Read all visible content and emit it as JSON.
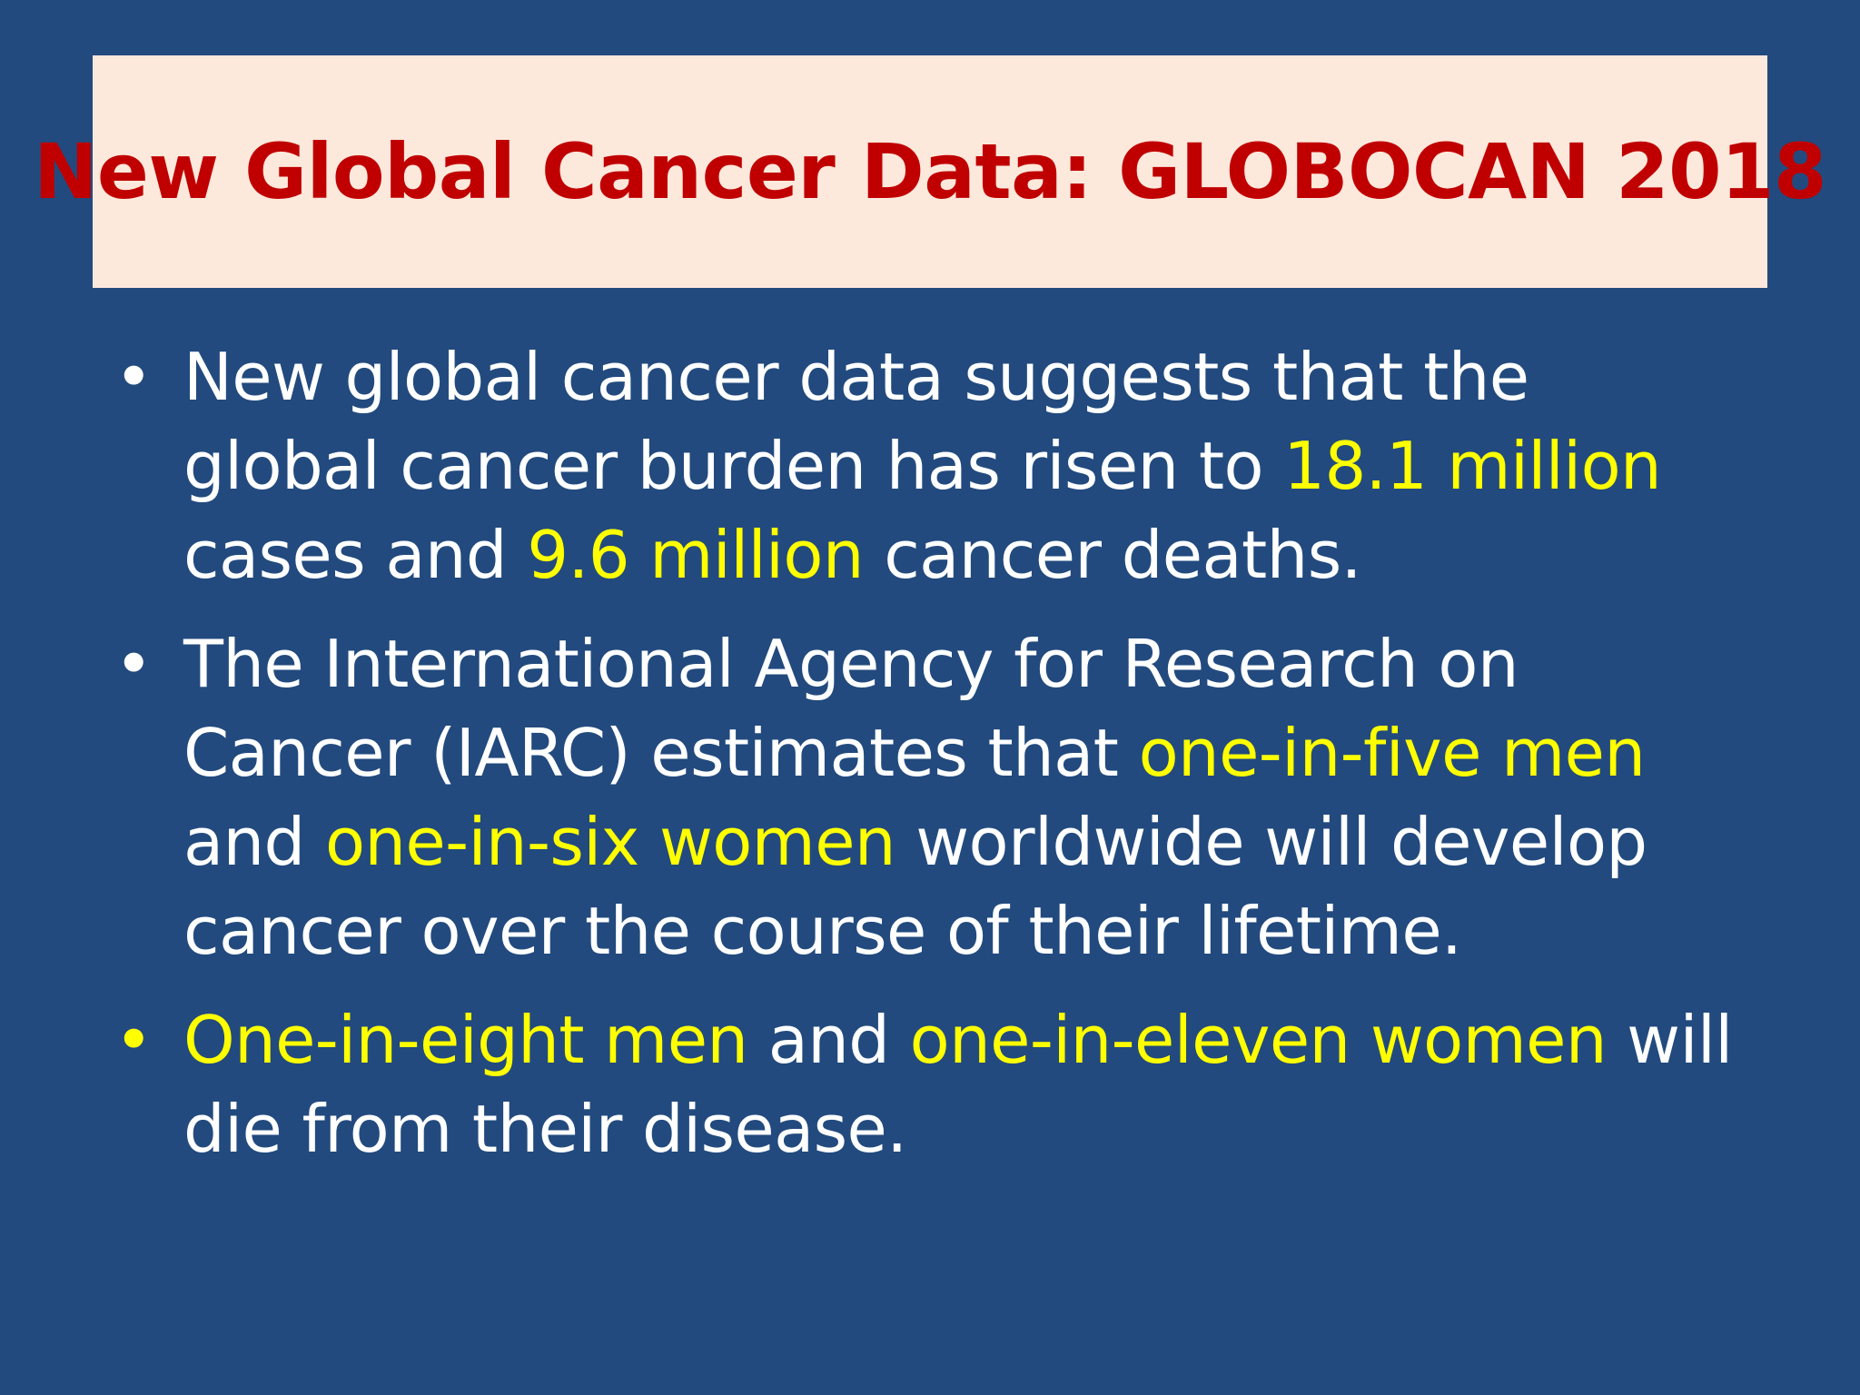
{
  "title": "New Global Cancer Data: GLOBOCAN 2018",
  "bullets": [
    {
      "parts": [
        "New global cancer data suggests that the global cancer burden has risen to ",
        "18.1 million",
        " cases and ",
        "9.6 million",
        " cancer deaths."
      ]
    },
    {
      "parts": [
        "The International Agency for Research on Cancer (IARC) estimates that ",
        "one-in-five men",
        " and ",
        "one-in-six women",
        " worldwide will develop cancer over the course of their lifetime."
      ]
    },
    {
      "parts": [
        "One-in-eight men",
        " and ",
        "one-in-eleven women",
        " will die from their disease."
      ]
    }
  ],
  "bullet_glyph": "•",
  "colors": {
    "background": "#224a7e",
    "title_box": "#fde8dc",
    "title_text": "#c00000",
    "body_text": "#ffffff",
    "highlight": "#ffff00"
  }
}
